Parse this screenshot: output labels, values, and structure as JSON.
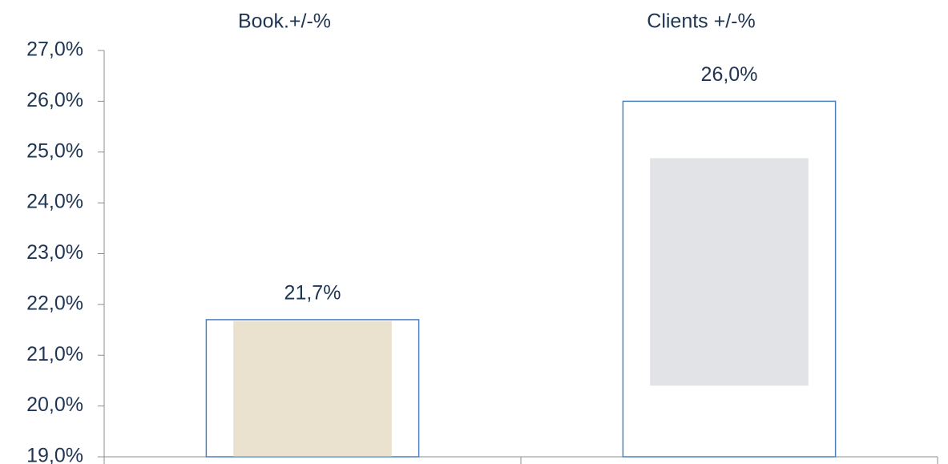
{
  "chart_data": {
    "type": "bar",
    "categories": [
      "Book.+/-%",
      "Clients +/-%"
    ],
    "values": [
      21.7,
      26.0
    ],
    "value_labels": [
      "21,7%",
      "26,0%"
    ],
    "color": "#4f81bd",
    "ylim": [
      19,
      27
    ],
    "yticks": [
      {
        "value": 19,
        "label": "19,0%"
      },
      {
        "value": 20,
        "label": "20,0%"
      },
      {
        "value": 21,
        "label": "21,0%"
      },
      {
        "value": 22,
        "label": "22,0%"
      },
      {
        "value": 23,
        "label": "23,0%"
      },
      {
        "value": 24,
        "label": "24,0%"
      },
      {
        "value": 25,
        "label": "25,0%"
      },
      {
        "value": 26,
        "label": "26,0%"
      },
      {
        "value": 27,
        "label": "27,0%"
      }
    ],
    "grid": false
  }
}
